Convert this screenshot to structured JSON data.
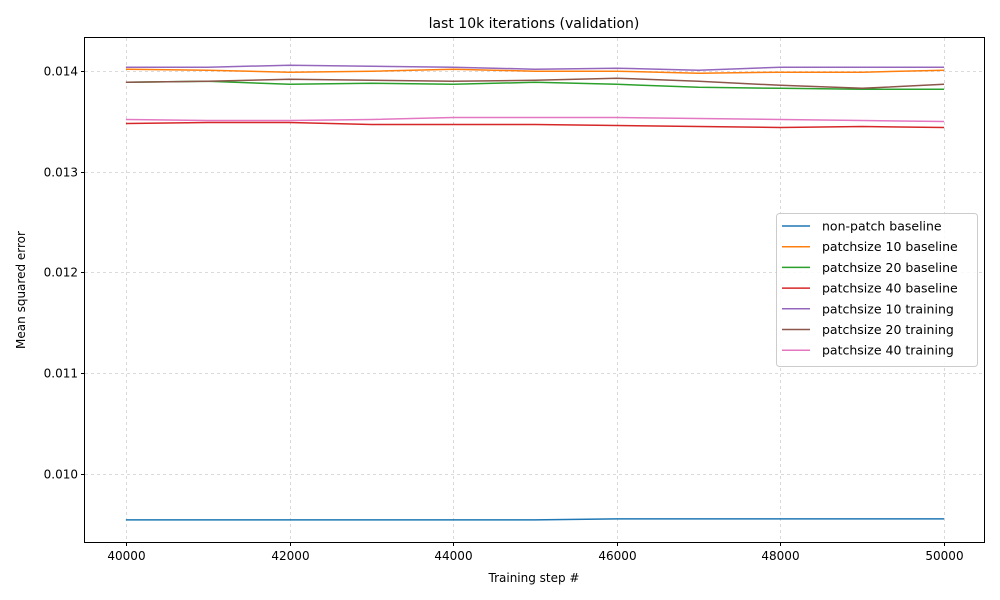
{
  "chart_data": {
    "type": "line",
    "title": "last 10k iterations (validation)",
    "xlabel": "Training step #",
    "ylabel": "Mean squared error",
    "xlim": [
      39500,
      50500
    ],
    "ylim": [
      0.00932,
      0.01433
    ],
    "xticks": [
      40000,
      42000,
      44000,
      46000,
      48000,
      50000
    ],
    "xtick_labels": [
      "40000",
      "42000",
      "44000",
      "46000",
      "48000",
      "50000"
    ],
    "yticks": [
      0.01,
      0.011,
      0.012,
      0.013,
      0.014
    ],
    "ytick_labels": [
      "0.010",
      "0.011",
      "0.012",
      "0.013",
      "0.014"
    ],
    "grid": true,
    "legend_position": "center-right",
    "x": [
      40000,
      41000,
      42000,
      43000,
      44000,
      45000,
      46000,
      47000,
      48000,
      49000,
      50000
    ],
    "series": [
      {
        "name": "non-patch baseline",
        "color": "#1f77b4",
        "values": [
          0.00954,
          0.00954,
          0.00954,
          0.00954,
          0.00954,
          0.00954,
          0.00955,
          0.00955,
          0.00955,
          0.00955,
          0.00955
        ]
      },
      {
        "name": "patchsize 10 baseline",
        "color": "#ff7f0e",
        "values": [
          0.01402,
          0.01401,
          0.01399,
          0.014,
          0.01402,
          0.014,
          0.014,
          0.01398,
          0.01399,
          0.01399,
          0.01401
        ]
      },
      {
        "name": "patchsize 20 baseline",
        "color": "#2ca02c",
        "values": [
          0.01389,
          0.0139,
          0.01387,
          0.01388,
          0.01387,
          0.01389,
          0.01387,
          0.01384,
          0.01383,
          0.01382,
          0.01382
        ]
      },
      {
        "name": "patchsize 40 baseline",
        "color": "#d62728",
        "values": [
          0.01348,
          0.01349,
          0.01349,
          0.01347,
          0.01347,
          0.01347,
          0.01346,
          0.01345,
          0.01344,
          0.01345,
          0.01344
        ]
      },
      {
        "name": "patchsize 10 training",
        "color": "#9467bd",
        "values": [
          0.01404,
          0.01404,
          0.01406,
          0.01405,
          0.01404,
          0.01402,
          0.01403,
          0.01401,
          0.01404,
          0.01404,
          0.01404
        ]
      },
      {
        "name": "patchsize 20 training",
        "color": "#8c564b",
        "values": [
          0.01389,
          0.0139,
          0.01392,
          0.01391,
          0.0139,
          0.01391,
          0.01393,
          0.0139,
          0.01386,
          0.01383,
          0.01387
        ]
      },
      {
        "name": "patchsize 40 training",
        "color": "#e377c2",
        "values": [
          0.01352,
          0.01351,
          0.01351,
          0.01352,
          0.01354,
          0.01354,
          0.01354,
          0.01353,
          0.01352,
          0.01351,
          0.0135
        ]
      }
    ]
  }
}
